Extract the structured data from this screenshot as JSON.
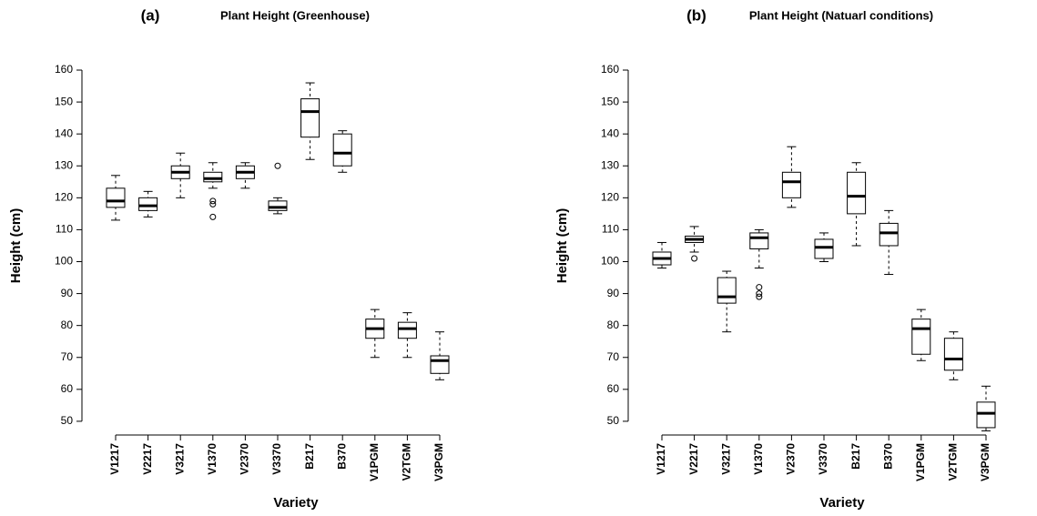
{
  "chart_data": [
    {
      "type": "box",
      "panel_label": "(a)",
      "title": "Plant Height (Greenhouse)",
      "xlabel": "Variety",
      "ylabel": "Height (cm)",
      "categories": [
        "V1217",
        "V2217",
        "V3217",
        "V1370",
        "V2370",
        "V3370",
        "B217",
        "B370",
        "V1PGM",
        "V2TGM",
        "V3PGM"
      ],
      "boxes": [
        {
          "low": 113,
          "q1": 117,
          "median": 119,
          "q3": 123,
          "high": 127,
          "outliers": []
        },
        {
          "low": 114,
          "q1": 116,
          "median": 117.5,
          "q3": 120,
          "high": 122,
          "outliers": []
        },
        {
          "low": 120,
          "q1": 126,
          "median": 128,
          "q3": 130,
          "high": 134,
          "outliers": []
        },
        {
          "low": 123,
          "q1": 125,
          "median": 126,
          "q3": 128,
          "high": 131,
          "outliers": [
            119,
            118,
            114
          ]
        },
        {
          "low": 123,
          "q1": 126,
          "median": 128,
          "q3": 130,
          "high": 131,
          "outliers": []
        },
        {
          "low": 115,
          "q1": 116,
          "median": 117,
          "q3": 119,
          "high": 120,
          "outliers": [
            130
          ]
        },
        {
          "low": 132,
          "q1": 139,
          "median": 147,
          "q3": 151,
          "high": 156,
          "outliers": []
        },
        {
          "low": 128,
          "q1": 130,
          "median": 134,
          "q3": 140,
          "high": 141,
          "outliers": []
        },
        {
          "low": 70,
          "q1": 76,
          "median": 79,
          "q3": 82,
          "high": 85,
          "outliers": []
        },
        {
          "low": 70,
          "q1": 76,
          "median": 79,
          "q3": 81,
          "high": 84,
          "outliers": []
        },
        {
          "low": 63,
          "q1": 65,
          "median": 69,
          "q3": 70.5,
          "high": 78,
          "outliers": []
        }
      ],
      "ylim": [
        45.7,
        162
      ],
      "yticks": [
        50,
        60,
        70,
        80,
        90,
        100,
        110,
        120,
        130,
        140,
        150,
        160
      ]
    },
    {
      "type": "box",
      "panel_label": "(b)",
      "title": "Plant Height (Natuarl conditions)",
      "xlabel": "Variety",
      "ylabel": "Height (cm)",
      "categories": [
        "V1217",
        "V2217",
        "V3217",
        "V1370",
        "V2370",
        "V3370",
        "B217",
        "B370",
        "V1PGM",
        "V2TGM",
        "V3PGM"
      ],
      "boxes": [
        {
          "low": 98,
          "q1": 99,
          "median": 101,
          "q3": 103,
          "high": 106,
          "outliers": []
        },
        {
          "low": 103,
          "q1": 106,
          "median": 107,
          "q3": 108,
          "high": 111,
          "outliers": [
            101
          ]
        },
        {
          "low": 78,
          "q1": 87,
          "median": 89,
          "q3": 95,
          "high": 97,
          "outliers": []
        },
        {
          "low": 98,
          "q1": 104,
          "median": 107.5,
          "q3": 109,
          "high": 110,
          "outliers": [
            92,
            90,
            89
          ]
        },
        {
          "low": 117,
          "q1": 120,
          "median": 125,
          "q3": 128,
          "high": 136,
          "outliers": []
        },
        {
          "low": 100,
          "q1": 101,
          "median": 104.5,
          "q3": 107,
          "high": 109,
          "outliers": []
        },
        {
          "low": 105,
          "q1": 115,
          "median": 120.5,
          "q3": 128,
          "high": 131,
          "outliers": []
        },
        {
          "low": 96,
          "q1": 105,
          "median": 109,
          "q3": 112,
          "high": 116,
          "outliers": []
        },
        {
          "low": 69,
          "q1": 71,
          "median": 79,
          "q3": 82,
          "high": 85,
          "outliers": []
        },
        {
          "low": 63,
          "q1": 66,
          "median": 69.5,
          "q3": 76,
          "high": 78,
          "outliers": []
        },
        {
          "low": 47,
          "q1": 48,
          "median": 52.5,
          "q3": 56,
          "high": 61,
          "outliers": []
        }
      ],
      "ylim": [
        45.7,
        162
      ],
      "yticks": [
        50,
        60,
        70,
        80,
        90,
        100,
        110,
        120,
        130,
        140,
        150,
        160
      ]
    }
  ]
}
